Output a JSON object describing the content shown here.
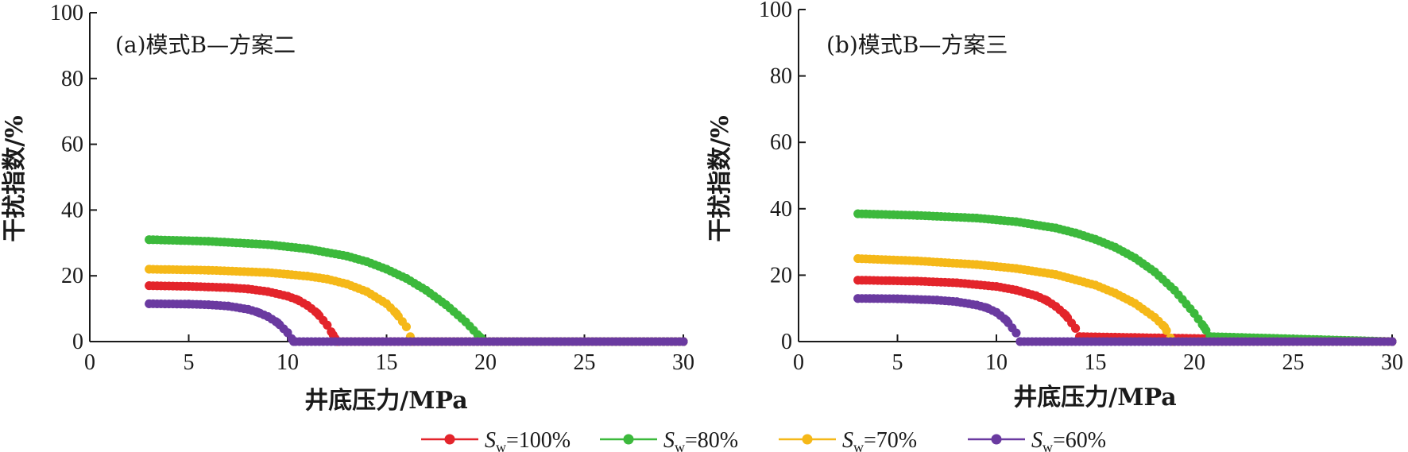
{
  "chart_data": [
    {
      "type": "line",
      "title": "(a)模式B—方案二",
      "xlabel": "井底压力/MPa",
      "ylabel": "干扰指数/%",
      "xlim": [
        0,
        30
      ],
      "ylim": [
        0,
        100
      ],
      "xticks": [
        "0",
        "5",
        "10",
        "15",
        "20",
        "25",
        "30"
      ],
      "yticks": [
        "0",
        "20",
        "40",
        "60",
        "80",
        "100"
      ],
      "series": [
        {
          "name": "Sw=100%",
          "color": "#e3242b",
          "x": [
            3,
            5,
            7,
            8,
            9,
            10,
            10.5,
            11,
            11.5,
            12,
            12.3,
            12.5,
            30
          ],
          "y": [
            17,
            16.8,
            16.4,
            16,
            15.2,
            13.8,
            12.7,
            11,
            8.6,
            5,
            2,
            0,
            0
          ]
        },
        {
          "name": "Sw=80%",
          "color": "#3cb93c",
          "x": [
            3,
            6,
            9,
            11,
            13,
            14,
            15,
            16,
            17,
            18,
            19,
            19.7,
            20,
            30
          ],
          "y": [
            31,
            30.5,
            29.5,
            28.2,
            26,
            24.3,
            22,
            19.2,
            15.6,
            11.2,
            6,
            1.5,
            0,
            0
          ]
        },
        {
          "name": "Sw=70%",
          "color": "#f5b818",
          "x": [
            3,
            6,
            9,
            11,
            12,
            13,
            14,
            15,
            15.5,
            16,
            16.3,
            30
          ],
          "y": [
            22,
            21.7,
            21,
            19.9,
            19,
            17.5,
            15.2,
            11.5,
            8.5,
            4.5,
            0,
            0
          ]
        },
        {
          "name": "Sw=60%",
          "color": "#6a3aa0",
          "x": [
            3,
            5,
            6,
            7,
            8,
            8.5,
            9,
            9.5,
            10,
            10.3,
            30
          ],
          "y": [
            11.5,
            11.4,
            11.2,
            10.8,
            9.8,
            8.9,
            7.6,
            5.7,
            2.7,
            0,
            0
          ]
        }
      ]
    },
    {
      "type": "line",
      "title": "(b)模式B—方案三",
      "xlabel": "井底压力/MPa",
      "ylabel": "干扰指数/%",
      "xlim": [
        0,
        30
      ],
      "ylim": [
        0,
        100
      ],
      "xticks": [
        "0",
        "5",
        "10",
        "15",
        "20",
        "25",
        "30"
      ],
      "yticks": [
        "0",
        "20",
        "40",
        "60",
        "80",
        "100"
      ],
      "series": [
        {
          "name": "Sw=100%",
          "color": "#e3242b",
          "x": [
            3,
            6,
            8,
            10,
            11,
            12,
            12.5,
            13,
            13.5,
            14,
            14.2,
            30
          ],
          "y": [
            18.5,
            18.2,
            17.7,
            16.6,
            15.5,
            13.8,
            12.5,
            10.6,
            8,
            4,
            1.5,
            0
          ]
        },
        {
          "name": "Sw=80%",
          "color": "#3cb93c",
          "x": [
            3,
            6,
            9,
            11,
            13,
            14,
            15,
            16,
            17,
            18,
            19,
            20,
            20.5,
            20.8,
            30
          ],
          "y": [
            38.5,
            38,
            37.2,
            36.1,
            34.2,
            32.7,
            30.8,
            28.4,
            25.2,
            21,
            15.5,
            8.5,
            4.3,
            1.5,
            0
          ]
        },
        {
          "name": "Sw=70%",
          "color": "#f5b818",
          "x": [
            3,
            6,
            9,
            11,
            13,
            15,
            16,
            17,
            18,
            18.5,
            18.9,
            30
          ],
          "y": [
            25,
            24.3,
            23.2,
            22,
            20.2,
            17,
            14.6,
            11.5,
            7.3,
            4.4,
            0,
            0
          ]
        },
        {
          "name": "Sw=60%",
          "color": "#6a3aa0",
          "x": [
            3,
            5,
            7,
            8,
            9,
            9.5,
            10,
            10.5,
            11,
            11.2,
            30
          ],
          "y": [
            13,
            12.9,
            12.5,
            12,
            11,
            10.2,
            8.8,
            6.4,
            2.6,
            0,
            0
          ]
        }
      ]
    }
  ],
  "legend": [
    {
      "label_main": "S",
      "label_sub": "w",
      "label_rest": "=100%",
      "color": "#e3242b"
    },
    {
      "label_main": "S",
      "label_sub": "w",
      "label_rest": "=80%",
      "color": "#3cb93c"
    },
    {
      "label_main": "S",
      "label_sub": "w",
      "label_rest": "=70%",
      "color": "#f5b818"
    },
    {
      "label_main": "S",
      "label_sub": "w",
      "label_rest": "=60%",
      "color": "#6a3aa0"
    }
  ]
}
